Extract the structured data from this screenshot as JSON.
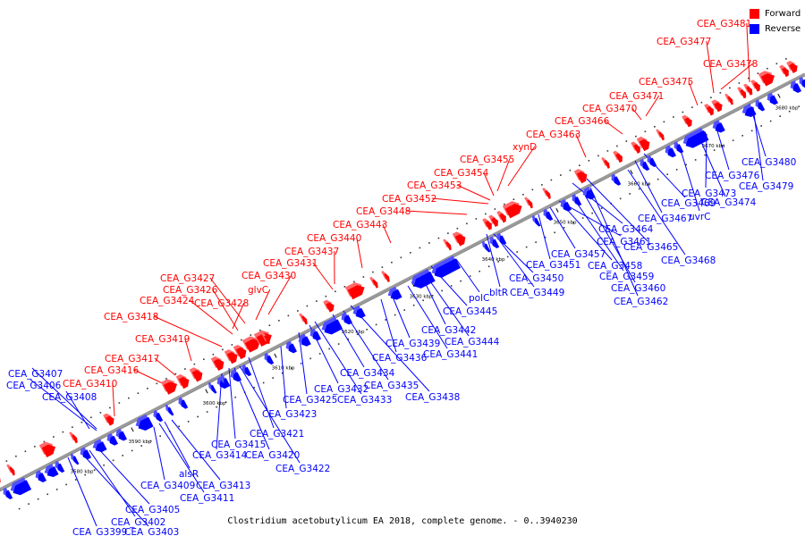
{
  "colors": {
    "forward": "#ff0000",
    "reverse": "#0000ff",
    "backbone": "#999999"
  },
  "legend": [
    {
      "label": "Forward",
      "color": "#ff0000"
    },
    {
      "label": "Reverse",
      "color": "#0000ff"
    }
  ],
  "caption": "Clostridium acetobutylicum EA 2018, complete genome. - 0..3940230",
  "ticks": [
    "3580 kbp",
    "3590 kbp",
    "3600 kbp",
    "3610 kbp",
    "3620 kbp",
    "3630 kbp",
    "3640 kbp",
    "3650 kbp",
    "3660 kbp",
    "3670 kbp",
    "3680 kbp"
  ],
  "forward_genes": [
    "CEA_G3481",
    "CEA_G3477",
    "CEA_G3478",
    "CEA_G3475",
    "CEA_G3471",
    "CEA_G3470",
    "CEA_G3466",
    "CEA_G3463",
    "xynD",
    "CEA_G3455",
    "CEA_G3454",
    "CEA_G3453",
    "CEA_G3452",
    "CEA_G3448",
    "CEA_G3443",
    "CEA_G3440",
    "CEA_G3437",
    "CEA_G3431",
    "CEA_G3430",
    "CEA_G3427",
    "CEA_G3426",
    "glvC",
    "CEA_G3424",
    "CEA_G3428",
    "CEA_G3418",
    "CEA_G3419",
    "CEA_G3417",
    "CEA_G3416",
    "CEA_G3410"
  ],
  "reverse_genes": [
    "CEA_G3407",
    "CEA_G3406",
    "CEA_G3408",
    "CEA_G3480",
    "CEA_G3476",
    "CEA_G3473",
    "CEA_G3479",
    "CEA_G3474",
    "CEA_G3469",
    "uvrC",
    "CEA_G3467",
    "CEA_G3464",
    "CEA_G3465",
    "CEA_G3468",
    "CEA_G3461",
    "CEA_G3457",
    "CEA_G3451",
    "CEA_G3458",
    "CEA_G3459",
    "CEA_G3460",
    "CEA_G3462",
    "CEA_G3450",
    "bltR",
    "CEA_G3449",
    "polC",
    "CEA_G3445",
    "CEA_G3442",
    "CEA_G3444",
    "CEA_G3441",
    "CEA_G3439",
    "CEA_G3436",
    "CEA_G3434",
    "CEA_G3435",
    "CEA_G3438",
    "CEA_G3432",
    "CEA_G3433",
    "CEA_G3425",
    "CEA_G3423",
    "CEA_G3421",
    "CEA_G3415",
    "CEA_G3414",
    "CEA_G3420",
    "CEA_G3422",
    "alsR",
    "CEA_G3409",
    "CEA_G3413",
    "CEA_G3411",
    "CEA_G3405",
    "CEA_G3402",
    "CEA_G3399",
    "CEA_G3403"
  ]
}
